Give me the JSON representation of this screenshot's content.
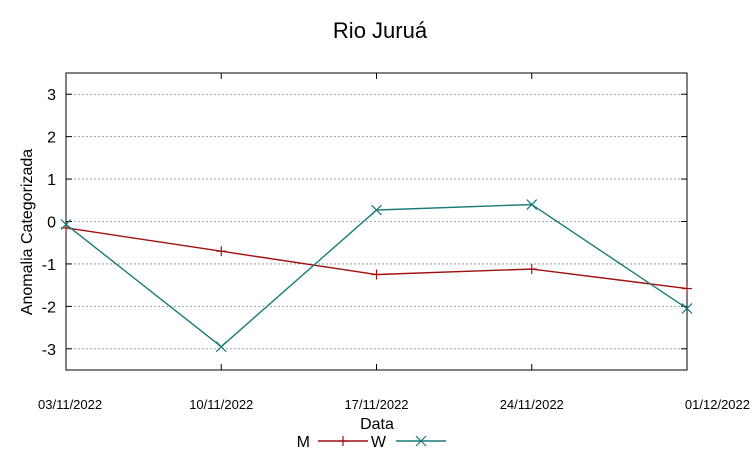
{
  "chart_data": {
    "type": "line",
    "title": "Rio Juruá",
    "xlabel": "Data",
    "ylabel": "Anomalia Categorizada",
    "x": [
      "03/11/2022",
      "10/11/2022",
      "17/11/2022",
      "24/11/2022",
      "01/12/2022"
    ],
    "ylim": [
      -3.5,
      3.5
    ],
    "yticks": [
      -3,
      -2,
      -1,
      0,
      1,
      2,
      3
    ],
    "grid": true,
    "legend_position": "bottom-center",
    "series": [
      {
        "name": "M",
        "color": "#a01010",
        "marker": "plus",
        "values": [
          -0.15,
          -0.7,
          -1.25,
          -1.12,
          -1.58
        ]
      },
      {
        "name": "W",
        "color": "#1a7a7a",
        "marker": "cross",
        "values": [
          -0.07,
          -2.95,
          0.27,
          0.4,
          -2.05
        ]
      }
    ]
  }
}
